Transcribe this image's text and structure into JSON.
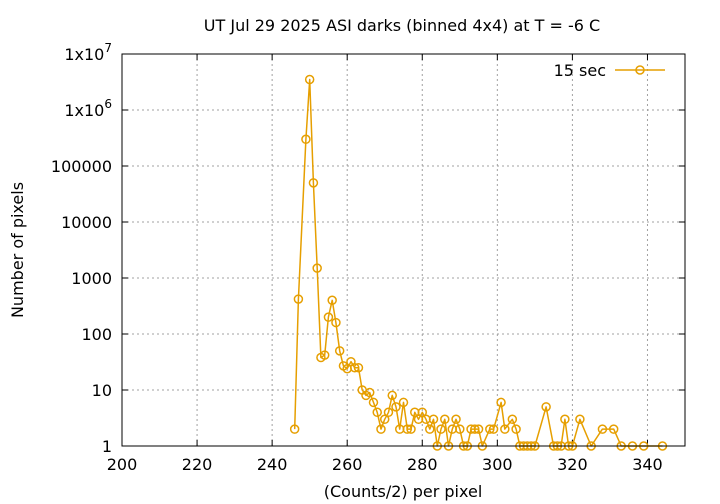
{
  "chart_data": {
    "type": "line",
    "title": "UT Jul 29 2025 ASI darks (binned 4x4) at T = -6 C",
    "xlabel": "(Counts/2) per pixel",
    "ylabel": "Number of pixels",
    "xlim": [
      200,
      350
    ],
    "ylim": [
      1,
      10000000
    ],
    "yscale": "log",
    "grid": true,
    "legend_position": "top-right",
    "x_ticks": [
      200,
      220,
      240,
      260,
      280,
      300,
      320,
      340
    ],
    "x_tick_labels": [
      "200",
      "220",
      "240",
      "260",
      "280",
      "300",
      "320",
      "340"
    ],
    "y_ticks": [
      1,
      10,
      100,
      1000,
      10000,
      100000,
      1000000,
      10000000
    ],
    "y_tick_labels": [
      {
        "base": "1",
        "exp": ""
      },
      {
        "base": "10",
        "exp": ""
      },
      {
        "base": "100",
        "exp": ""
      },
      {
        "base": "1000",
        "exp": ""
      },
      {
        "base": "10000",
        "exp": ""
      },
      {
        "base": "100000",
        "exp": ""
      },
      {
        "base": "1x10",
        "exp": "6"
      },
      {
        "base": "1x10",
        "exp": "7"
      }
    ],
    "series": [
      {
        "name": "15 sec",
        "color": "#e69f00",
        "marker": "open-circle",
        "x": [
          246,
          247,
          249,
          250,
          251,
          252,
          253,
          254,
          255,
          256,
          257,
          258,
          259,
          260,
          261,
          262,
          263,
          264,
          265,
          266,
          267,
          268,
          269,
          270,
          271,
          272,
          273,
          274,
          275,
          276,
          277,
          278,
          279,
          280,
          281,
          282,
          283,
          284,
          285,
          286,
          287,
          288,
          289,
          290,
          291,
          292,
          293,
          294,
          295,
          296,
          298,
          299,
          301,
          302,
          304,
          305,
          306,
          307,
          308,
          309,
          310,
          313,
          315,
          316,
          317,
          318,
          319,
          320,
          322,
          325,
          328,
          331,
          333,
          336,
          339,
          344
        ],
        "y": [
          2,
          420,
          300000,
          3500000,
          50000,
          1500,
          38,
          42,
          200,
          400,
          160,
          50,
          27,
          24,
          32,
          25,
          25,
          10,
          8,
          9,
          6,
          4,
          2,
          3,
          4,
          8,
          5,
          2,
          6,
          2,
          2,
          4,
          3,
          4,
          3,
          2,
          3,
          1,
          2,
          3,
          1,
          2,
          3,
          2,
          1,
          1,
          2,
          2,
          2,
          1,
          2,
          2,
          6,
          2,
          3,
          2,
          1,
          1,
          1,
          1,
          1,
          5,
          1,
          1,
          1,
          3,
          1,
          1,
          3,
          1,
          2,
          2,
          1,
          1,
          1,
          1
        ]
      }
    ]
  }
}
